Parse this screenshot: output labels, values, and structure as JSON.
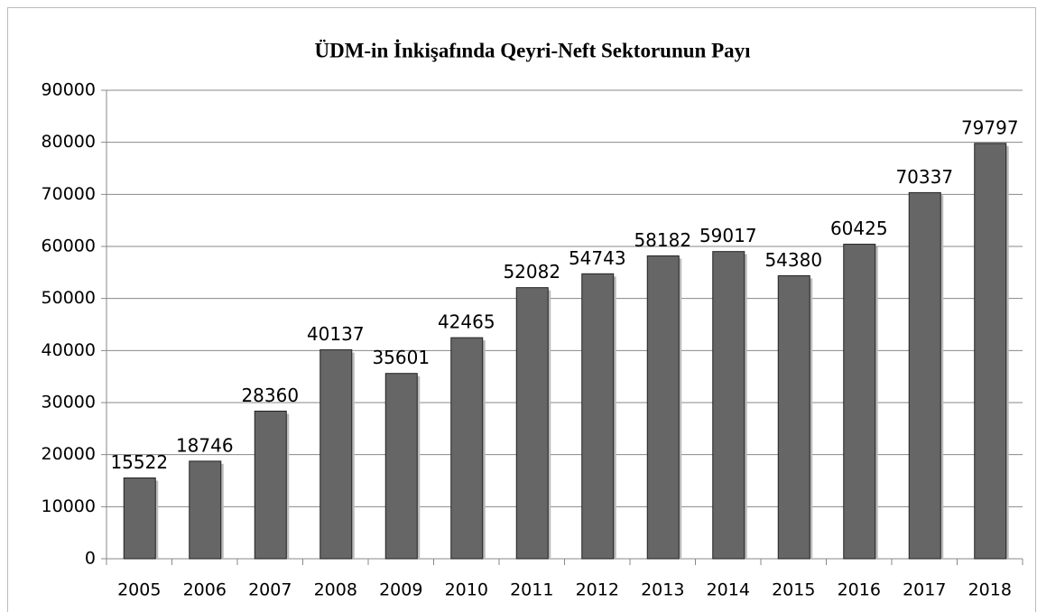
{
  "chart_data": {
    "type": "bar",
    "title": "ÜDM-in İnkişafında Qeyri-Neft Sektorunun Payı",
    "categories": [
      "2005",
      "2006",
      "2007",
      "2008",
      "2009",
      "2010",
      "2011",
      "2012",
      "2013",
      "2014",
      "2015",
      "2016",
      "2017",
      "2018"
    ],
    "values": [
      15522,
      18746,
      28360,
      40137,
      35601,
      42465,
      52082,
      54743,
      58182,
      59017,
      54380,
      60425,
      70337,
      79797
    ],
    "color": "#666666",
    "ylim": [
      0,
      90000
    ],
    "yticks": [
      0,
      10000,
      20000,
      30000,
      40000,
      50000,
      60000,
      70000,
      80000,
      90000
    ],
    "grid": true
  }
}
